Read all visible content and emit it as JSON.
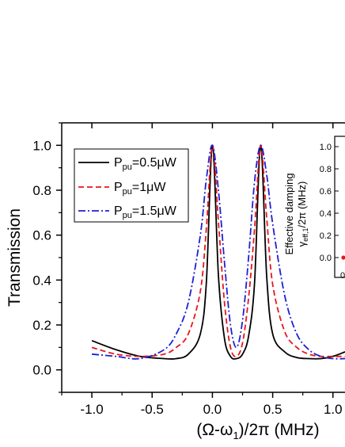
{
  "chart_data": {
    "type": "line",
    "xlabel": "(Ω-ω₁)/2π (MHz)",
    "ylabel": "Transmission",
    "xlim": [
      -1.25,
      1.1
    ],
    "ylim": [
      -0.1,
      1.1
    ],
    "x_ticks": [
      "-1.0",
      "-0.5",
      "0.0",
      "0.5",
      "1.0"
    ],
    "y_ticks": [
      "0.0",
      "0.2",
      "0.4",
      "0.6",
      "0.8",
      "1.0"
    ],
    "grid": false,
    "legend": "top-left",
    "series": [
      {
        "name": "P_pu=0.5μW",
        "legend_main": "P",
        "legend_sub": "pu",
        "legend_value": "=0.5μW",
        "color": "#000000",
        "dash": "solid",
        "x": [
          -1.0,
          -0.8,
          -0.6,
          -0.4,
          -0.3,
          -0.2,
          -0.1,
          -0.05,
          0.0,
          0.05,
          0.1,
          0.15,
          0.2,
          0.25,
          0.3,
          0.35,
          0.4,
          0.45,
          0.5,
          0.6,
          0.7,
          0.8,
          0.9,
          1.0,
          1.1
        ],
        "y": [
          0.13,
          0.09,
          0.06,
          0.05,
          0.05,
          0.07,
          0.16,
          0.39,
          1.0,
          0.42,
          0.14,
          0.06,
          0.05,
          0.07,
          0.15,
          0.39,
          1.0,
          0.42,
          0.16,
          0.08,
          0.055,
          0.05,
          0.05,
          0.06,
          0.08
        ]
      },
      {
        "name": "P_pu=1μW",
        "legend_main": "P",
        "legend_sub": "pu",
        "legend_value": "=1μW",
        "color": "#e8171b",
        "dash": "dashed",
        "x": [
          -1.0,
          -0.8,
          -0.6,
          -0.4,
          -0.3,
          -0.2,
          -0.1,
          -0.05,
          0.0,
          0.05,
          0.1,
          0.15,
          0.2,
          0.25,
          0.3,
          0.35,
          0.4,
          0.45,
          0.5,
          0.6,
          0.7,
          0.8,
          0.9,
          1.0,
          1.1
        ],
        "y": [
          0.1,
          0.07,
          0.06,
          0.07,
          0.1,
          0.16,
          0.35,
          0.63,
          1.0,
          0.66,
          0.3,
          0.1,
          0.06,
          0.12,
          0.32,
          0.63,
          1.0,
          0.68,
          0.38,
          0.17,
          0.1,
          0.07,
          0.06,
          0.06,
          0.06
        ]
      },
      {
        "name": "P_pu=1.5μW",
        "legend_main": "P",
        "legend_sub": "pu",
        "legend_value": "=1.5μW",
        "color": "#1f1fd6",
        "dash": "dashdot",
        "x": [
          -1.0,
          -0.8,
          -0.6,
          -0.4,
          -0.3,
          -0.2,
          -0.1,
          -0.05,
          0.0,
          0.05,
          0.1,
          0.15,
          0.2,
          0.25,
          0.3,
          0.35,
          0.4,
          0.45,
          0.5,
          0.6,
          0.7,
          0.8,
          0.9,
          1.0,
          1.1
        ],
        "y": [
          0.07,
          0.06,
          0.05,
          0.09,
          0.16,
          0.3,
          0.6,
          0.85,
          1.0,
          0.8,
          0.48,
          0.2,
          0.1,
          0.22,
          0.5,
          0.84,
          1.0,
          0.87,
          0.65,
          0.33,
          0.16,
          0.09,
          0.06,
          0.05,
          0.05
        ]
      }
    ]
  },
  "inset": {
    "ylabel_line1": "Effective damping",
    "ylabel_line2_main": "γ",
    "ylabel_line2_sub": "eff,1",
    "ylabel_line2_rest": "/2π (MHz)",
    "y_ticks": [
      "1.0",
      "0.8",
      "0.6",
      "0.4",
      "0.2",
      "0.0"
    ],
    "partial_tick_label": "0",
    "marker_color": "#e8171b"
  }
}
